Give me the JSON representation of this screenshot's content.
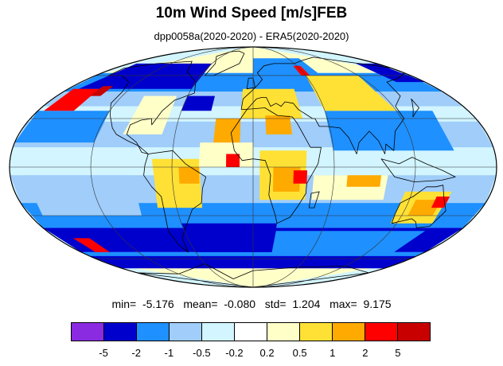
{
  "header": {
    "title": "10m Wind Speed [m/s]FEB",
    "subtitle": "dpp0058a(2020-2020) - ERA5(2020-2020)"
  },
  "stats": {
    "min_label": "min=",
    "min_value": "-5.176",
    "mean_label": "mean=",
    "mean_value": "-0.080",
    "std_label": "std=",
    "std_value": "1.204",
    "max_label": "max=",
    "max_value": "9.175"
  },
  "colorbar": {
    "colors": [
      "#8a2be2",
      "#0000cd",
      "#1e90ff",
      "#a0cdfa",
      "#d2f5ff",
      "#ffffff",
      "#ffffc8",
      "#ffe135",
      "#ffaa00",
      "#ff0000",
      "#c80000"
    ],
    "labels": [
      "-5",
      "-2",
      "-1",
      "-0.5",
      "-0.2",
      "0.2",
      "0.5",
      "1",
      "2",
      "5"
    ]
  },
  "map": {
    "projection": "mollweide",
    "field": "difference",
    "continent_outline_color": "#000000",
    "graticule_color": "#333333"
  }
}
